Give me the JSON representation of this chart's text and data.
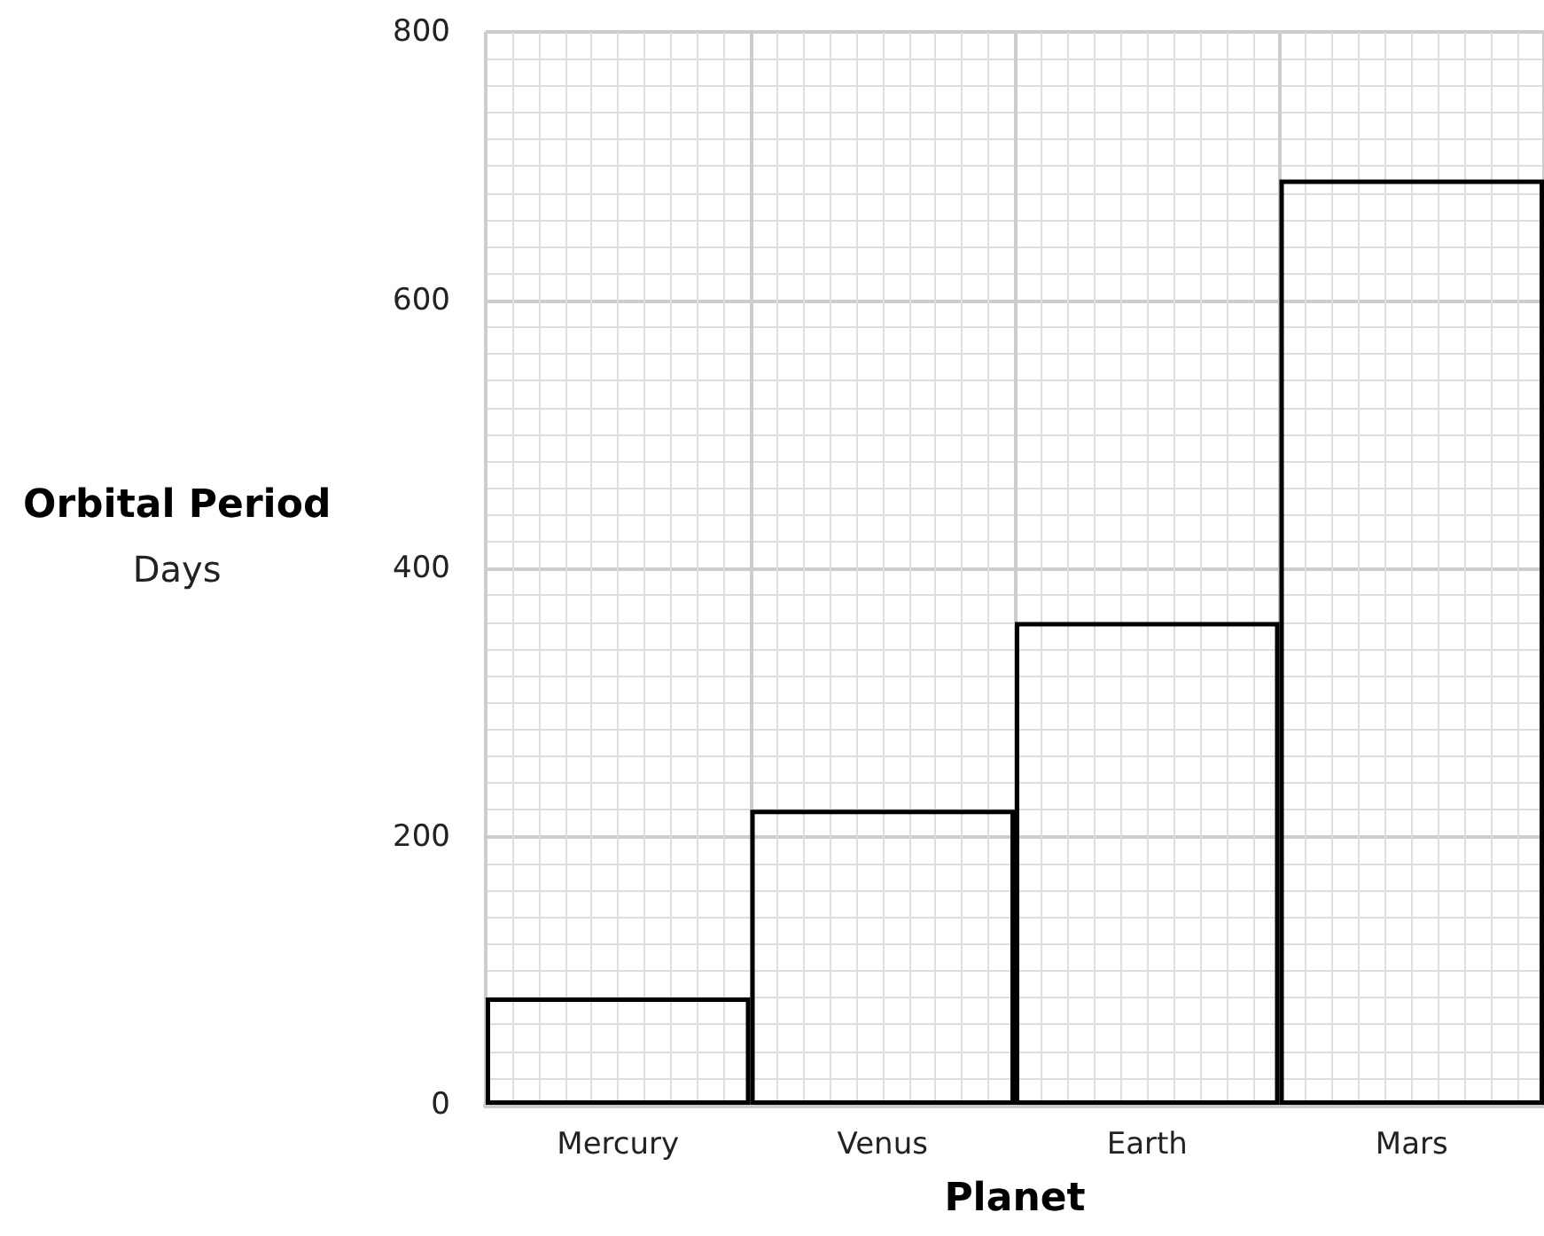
{
  "chart_data": {
    "type": "bar",
    "xlabel": "Planet",
    "ylabel": "Orbital Period\nDays",
    "categories": [
      "Mercury",
      "Venus",
      "Earth",
      "Mars"
    ],
    "values": [
      80,
      220,
      360,
      690
    ],
    "color": "#000000",
    "ylim": [
      0,
      800
    ],
    "yticks": [
      0,
      200,
      400,
      600,
      800
    ],
    "grid": true
  }
}
